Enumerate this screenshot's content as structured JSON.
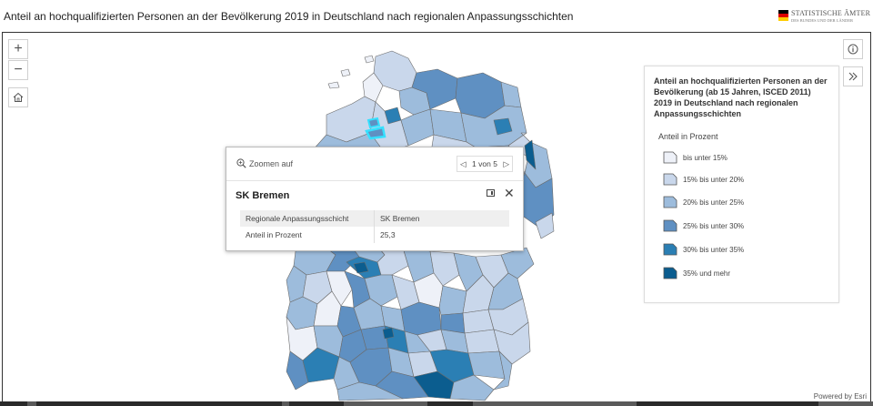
{
  "header": {
    "title": "Anteil an hochqualifizierten Personen an der Bevölkerung 2019 in Deutschland nach regionalen Anpassungsschichten",
    "logo_line1": "STATISTISCHE ÄMTER",
    "logo_line2": "DES BUNDES UND DER LÄNDER"
  },
  "map_controls": {
    "zoom_in": "+",
    "zoom_out": "−"
  },
  "popup": {
    "zoom_action": "Zoomen auf",
    "pager": "1 von 5",
    "feature_title": "SK Bremen",
    "rows": [
      {
        "label": "Regionale Anpassungsschicht",
        "value": "SK Bremen"
      },
      {
        "label": "Anteil in Prozent",
        "value": "25,3"
      }
    ]
  },
  "legend": {
    "title": "Anteil an hochqualifizierten Personen an der Bevölkerung (ab 15 Jahren, ISCED 2011) 2019 in Deutschland nach regionalen Anpassungsschichten",
    "field_label": "Anteil in Prozent",
    "classes": [
      {
        "label": "bis unter 15%",
        "color": "#eef1f8"
      },
      {
        "label": "15% bis unter 20%",
        "color": "#c9d7eb"
      },
      {
        "label": "20% bis unter 25%",
        "color": "#9dbcdc"
      },
      {
        "label": "25% bis unter 30%",
        "color": "#5f90c2"
      },
      {
        "label": "30% bis unter 35%",
        "color": "#2b7fb4"
      },
      {
        "label": "35% und mehr",
        "color": "#0b5d8f"
      }
    ]
  },
  "attribution": "Powered by Esri"
}
